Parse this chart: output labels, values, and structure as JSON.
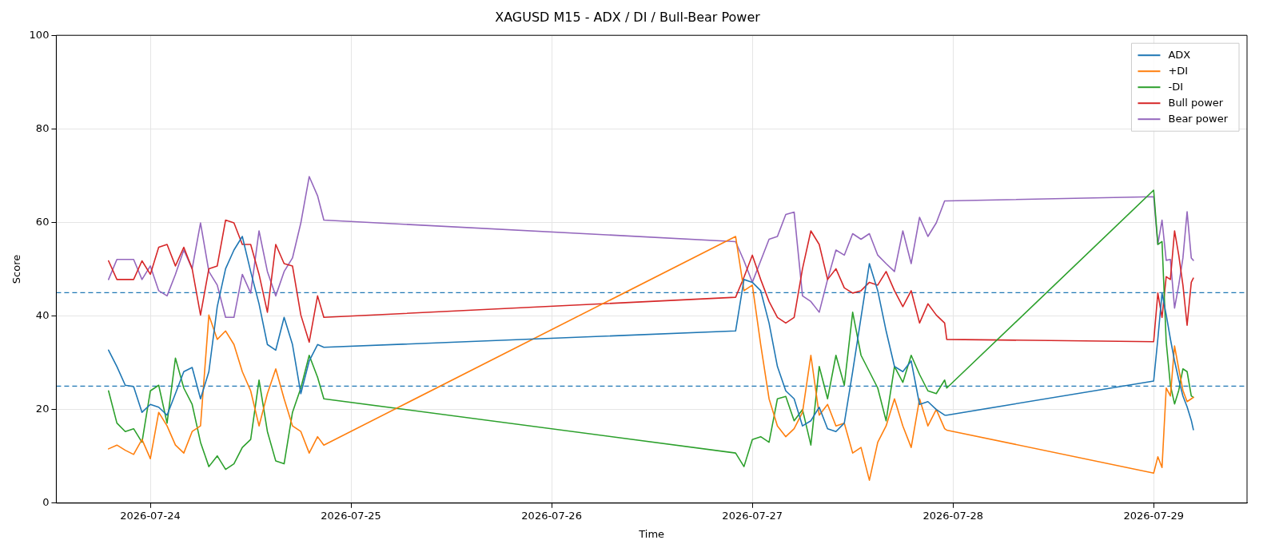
{
  "chart_data": {
    "type": "line",
    "title": "XAGUSD M15 - ADX / DI / Bull-Bear Power",
    "xlabel": "Time",
    "ylabel": "Score",
    "x": [
      "2026-07-23T19:00",
      "2026-07-23T20:00",
      "2026-07-23T21:00",
      "2026-07-23T22:00",
      "2026-07-23T23:00",
      "2026-07-24T00:00",
      "2026-07-24T01:00",
      "2026-07-24T02:00",
      "2026-07-24T03:00",
      "2026-07-24T04:00",
      "2026-07-24T05:00",
      "2026-07-24T06:00",
      "2026-07-24T07:00",
      "2026-07-24T08:00",
      "2026-07-24T09:00",
      "2026-07-24T10:00",
      "2026-07-24T11:00",
      "2026-07-24T12:00",
      "2026-07-24T13:00",
      "2026-07-24T14:00",
      "2026-07-24T15:00",
      "2026-07-24T16:00",
      "2026-07-24T17:00",
      "2026-07-24T18:00",
      "2026-07-24T19:00",
      "2026-07-24T20:00",
      "2026-07-24T20:45",
      "2026-07-26T22:00",
      "2026-07-26T23:00",
      "2026-07-27T00:00",
      "2026-07-27T01:00",
      "2026-07-27T02:00",
      "2026-07-27T03:00",
      "2026-07-27T04:00",
      "2026-07-27T05:00",
      "2026-07-27T06:00",
      "2026-07-27T07:00",
      "2026-07-27T08:00",
      "2026-07-27T09:00",
      "2026-07-27T10:00",
      "2026-07-27T11:00",
      "2026-07-27T12:00",
      "2026-07-27T13:00",
      "2026-07-27T14:00",
      "2026-07-27T15:00",
      "2026-07-27T16:00",
      "2026-07-27T17:00",
      "2026-07-27T18:00",
      "2026-07-27T19:00",
      "2026-07-27T20:00",
      "2026-07-27T21:00",
      "2026-07-27T22:00",
      "2026-07-27T23:00",
      "2026-07-27T23:15",
      "2026-07-29T00:00",
      "2026-07-29T00:30",
      "2026-07-29T01:00",
      "2026-07-29T01:30",
      "2026-07-29T02:00",
      "2026-07-29T02:30",
      "2026-07-29T03:00",
      "2026-07-29T03:30",
      "2026-07-29T04:00",
      "2026-07-29T04:30",
      "2026-07-29T04:45"
    ],
    "series": [
      {
        "name": "ADX",
        "color": "#1f77b4",
        "values": [
          32.7,
          29.2,
          25.2,
          24.9,
          19.4,
          21.1,
          20.5,
          18.8,
          23.4,
          28.1,
          29,
          22.3,
          28.1,
          42,
          50.1,
          54.1,
          57,
          49.5,
          42.6,
          33.9,
          32.7,
          39.7,
          33.9,
          23.4,
          30.4,
          33.9,
          33.3,
          36.8,
          47.8,
          47.2,
          45.4,
          38.5,
          29.2,
          24,
          22.3,
          16.5,
          17.6,
          20.5,
          15.9,
          15.3,
          17.1,
          28.1,
          39.7,
          51.2,
          45.4,
          36.8,
          29.2,
          28.1,
          30.4,
          21.1,
          21.7,
          20,
          18.8,
          18.8,
          26.1,
          35.1,
          44.9,
          40.3,
          35.1,
          30.4,
          26.4,
          22.9,
          20.6,
          17.7,
          15.7
        ]
      },
      {
        "name": "+DI",
        "color": "#ff7f0e",
        "values": [
          11.6,
          12.4,
          11.3,
          10.4,
          13.6,
          9.5,
          19.4,
          16.5,
          12.4,
          10.7,
          15.3,
          16.5,
          40.2,
          35,
          36.8,
          33.9,
          28.1,
          24,
          16.5,
          23.4,
          28.7,
          22.3,
          16.5,
          15.3,
          10.7,
          14.2,
          12.4,
          57,
          45.4,
          46.6,
          33.9,
          22.3,
          16.5,
          14.2,
          15.9,
          19.4,
          31.6,
          18.8,
          21.1,
          16.5,
          17.1,
          10.7,
          11.9,
          4.9,
          13,
          16.5,
          22.3,
          16.5,
          11.9,
          22.3,
          16.5,
          20,
          15.9,
          15.6,
          6.4,
          9.9,
          7.6,
          24.6,
          22.9,
          33.6,
          28.7,
          24.1,
          21.7,
          22.3,
          22.6
        ]
      },
      {
        "name": "-DI",
        "color": "#2ca02c",
        "values": [
          24,
          17.1,
          15.3,
          15.9,
          13,
          24,
          25.2,
          17.1,
          31,
          24.6,
          21.1,
          13,
          7.8,
          10.1,
          7.2,
          8.4,
          11.9,
          13.6,
          26.3,
          15.3,
          9,
          8.4,
          19.4,
          24.6,
          31.6,
          26.9,
          22.3,
          10.7,
          7.8,
          13.6,
          14.2,
          13,
          22.3,
          22.8,
          17.6,
          20,
          12.4,
          29.2,
          22.3,
          31.6,
          25.2,
          40.8,
          31.6,
          28.1,
          24.6,
          17.6,
          29.2,
          25.8,
          31.6,
          27.5,
          24,
          23.4,
          26.3,
          24.6,
          66.9,
          55.3,
          55.9,
          34.5,
          25.2,
          21.2,
          24.1,
          28.7,
          28.1,
          22.9,
          22.6
        ]
      },
      {
        "name": "Bull power",
        "color": "#d62728",
        "values": [
          51.8,
          47.8,
          47.8,
          47.8,
          51.8,
          48.9,
          54.7,
          55.3,
          50.7,
          54.7,
          50.1,
          40.2,
          50.1,
          50.7,
          60.5,
          59.9,
          55.3,
          55.3,
          48.9,
          40.8,
          55.3,
          51.2,
          50.7,
          40.2,
          34.4,
          44.3,
          39.7,
          44,
          48.3,
          53,
          47.8,
          43.1,
          39.7,
          38.5,
          39.7,
          50.1,
          58.2,
          55.3,
          47.8,
          50.1,
          46,
          44.9,
          45.4,
          47.2,
          46.6,
          49.5,
          45.4,
          42,
          45.4,
          38.5,
          42.6,
          40.2,
          38.5,
          35,
          34.5,
          44.9,
          39.7,
          48.4,
          47.8,
          58.2,
          53,
          46.6,
          38,
          47.2,
          48.1
        ]
      },
      {
        "name": "Bear power",
        "color": "#9467bd",
        "values": [
          47.8,
          52.1,
          52.1,
          52.1,
          47.8,
          50.7,
          45.4,
          44.3,
          48.9,
          54.1,
          50.1,
          59.9,
          49.5,
          46.6,
          39.7,
          39.7,
          48.9,
          44.9,
          58.2,
          49.5,
          44.3,
          49.5,
          52.4,
          59.9,
          69.8,
          65.7,
          60.5,
          55.9,
          51.8,
          47.2,
          51.8,
          56.4,
          57,
          61.7,
          62.2,
          44.3,
          43.1,
          40.8,
          47.8,
          54.1,
          53,
          57.6,
          56.4,
          57.6,
          53,
          51.2,
          49.5,
          58.2,
          51.2,
          61.1,
          57,
          59.9,
          64.6,
          64.6,
          65.5,
          55.3,
          60.5,
          51.9,
          52.1,
          41.7,
          46.6,
          52.4,
          62.3,
          52.4,
          51.9
        ]
      }
    ],
    "xlim": [
      "2026-07-23T12:45",
      "2026-07-29T11:10"
    ],
    "xticks": [
      "2026-07-24",
      "2026-07-25",
      "2026-07-26",
      "2026-07-27",
      "2026-07-28",
      "2026-07-29"
    ],
    "ylim": [
      0,
      100
    ],
    "yticks": [
      0,
      20,
      40,
      60,
      80,
      100
    ],
    "ref_lines": [
      {
        "axis": "y",
        "value": 45,
        "color": "#1f77b4",
        "line_style": "dashed"
      },
      {
        "axis": "y",
        "value": 25,
        "color": "#1f77b4",
        "line_style": "dashed"
      }
    ],
    "grid": true,
    "legend": "top right",
    "marker": "none",
    "line_style": "solid"
  }
}
